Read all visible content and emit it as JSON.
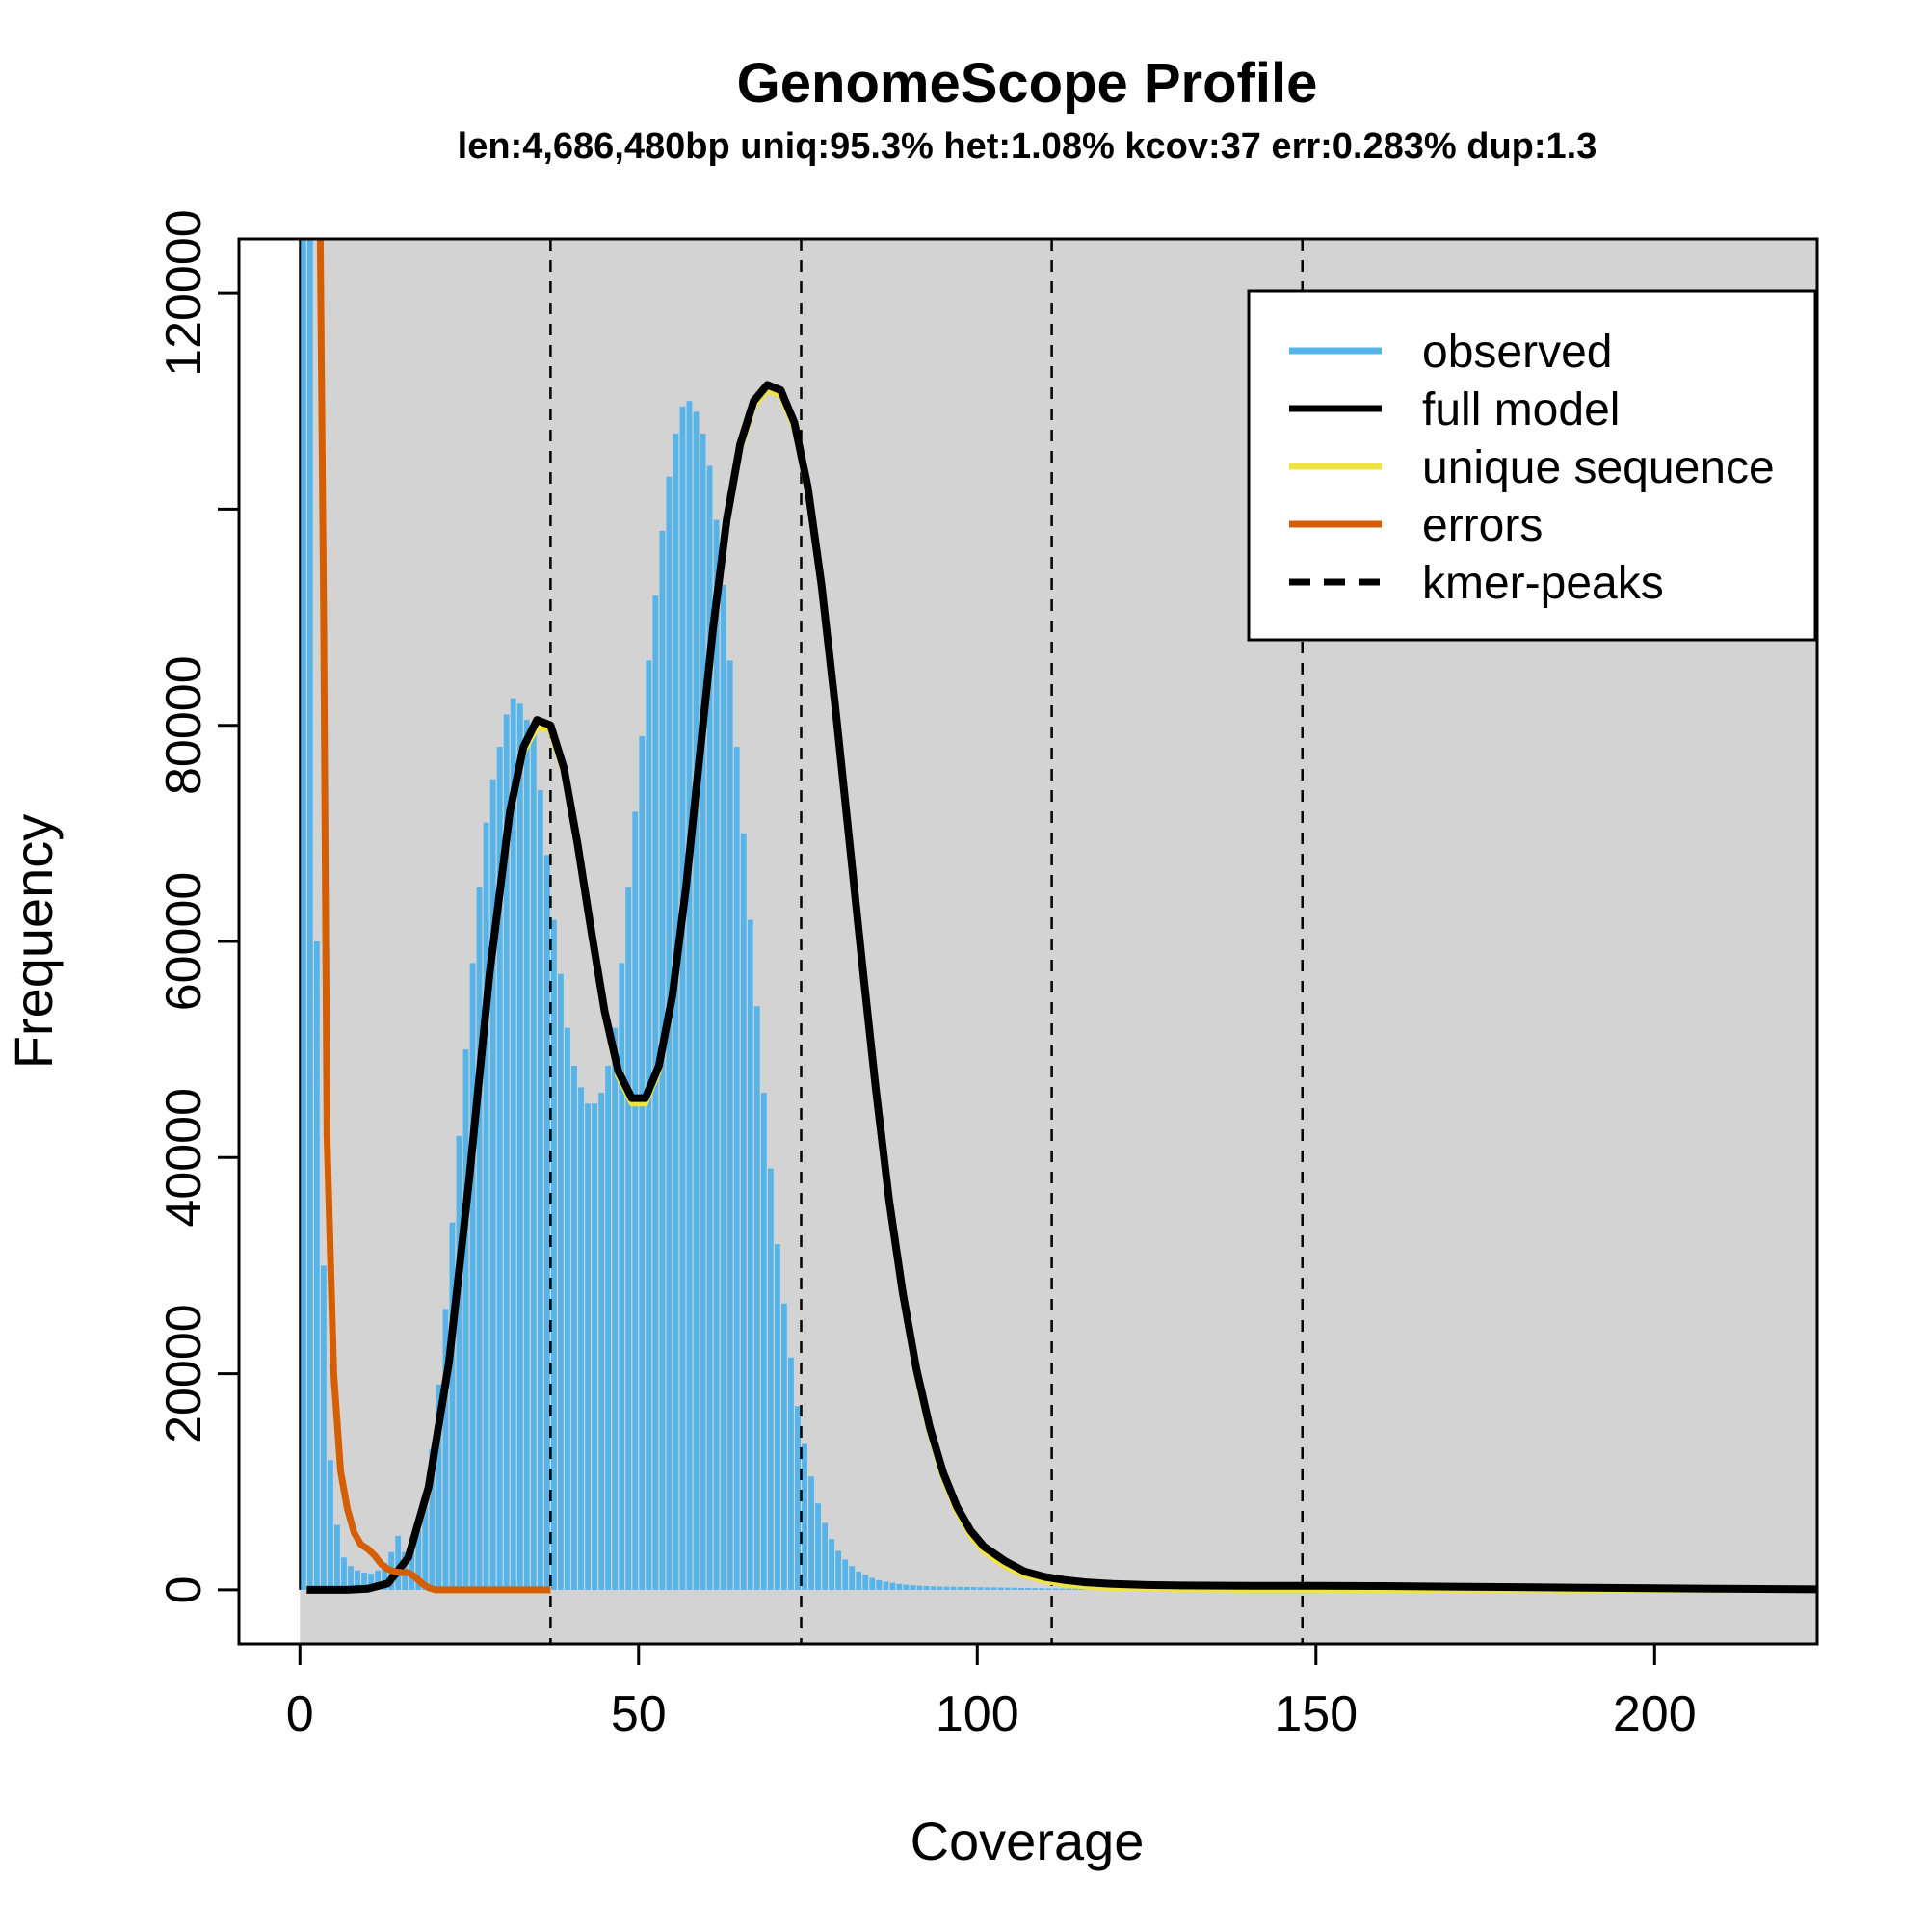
{
  "chart_data": {
    "type": "bar",
    "title": "GenomeScope Profile",
    "subtitle": "len:4,686,480bp uniq:95.3% het:1.08% kcov:37 err:0.283% dup:1.3",
    "xlabel": "Coverage",
    "ylabel": "Frequency",
    "xlim": [
      -9,
      224
    ],
    "ylim": [
      -5000,
      125000
    ],
    "x_ticks": [
      0,
      50,
      100,
      150,
      200
    ],
    "y_ticks": [
      0,
      20000,
      40000,
      60000,
      80000,
      120000
    ],
    "grid": false,
    "legend_position": "top-right",
    "colors": {
      "background": "#d3d3d3",
      "observed": "#56b4e9",
      "full_model": "#000000",
      "unique_sequence": "#f0e442",
      "errors": "#d55e00"
    },
    "kmer_peaks": [
      37,
      74,
      111,
      148
    ],
    "legend": [
      {
        "label": "observed",
        "color": "#56b4e9",
        "style": "solid"
      },
      {
        "label": "full model",
        "color": "#000000",
        "style": "solid"
      },
      {
        "label": "unique sequence",
        "color": "#f0e442",
        "style": "solid"
      },
      {
        "label": "errors",
        "color": "#d55e00",
        "style": "solid"
      },
      {
        "label": "kmer-peaks",
        "color": "#000000",
        "style": "dashed"
      }
    ],
    "series": [
      {
        "name": "observed",
        "x": [
          1,
          2,
          3,
          4,
          5,
          6,
          7,
          8,
          9,
          10,
          11,
          12,
          13,
          14,
          15,
          16,
          17,
          18,
          19,
          20,
          21,
          22,
          23,
          24,
          25,
          26,
          27,
          28,
          29,
          30,
          31,
          32,
          33,
          34,
          35,
          36,
          37,
          38,
          39,
          40,
          41,
          42,
          43,
          44,
          45,
          46,
          47,
          48,
          49,
          50,
          51,
          52,
          53,
          54,
          55,
          56,
          57,
          58,
          59,
          60,
          61,
          62,
          63,
          64,
          65,
          66,
          67,
          68,
          69,
          70,
          71,
          72,
          73,
          74,
          75,
          76,
          77,
          78,
          79,
          80,
          81,
          82,
          83,
          84,
          85,
          86,
          87,
          88,
          89,
          90,
          91,
          92,
          93,
          94,
          95,
          96,
          97,
          98,
          99,
          100,
          101,
          102,
          103,
          104,
          105,
          106,
          107,
          108,
          109,
          110,
          111,
          112,
          113,
          114,
          115,
          116,
          117,
          118,
          119,
          120,
          121,
          122,
          123,
          124,
          125,
          126,
          127,
          128,
          129,
          130
        ],
        "values": [
          125000,
          125000,
          60000,
          30000,
          12000,
          6000,
          3000,
          2200,
          1800,
          1600,
          1500,
          1800,
          2500,
          3500,
          5000,
          3500,
          4000,
          5500,
          9000,
          13000,
          19000,
          26000,
          34000,
          42000,
          50000,
          58000,
          65000,
          71000,
          75000,
          78000,
          81000,
          82500,
          82000,
          80500,
          79500,
          74000,
          68000,
          62000,
          57000,
          52000,
          48500,
          46500,
          45000,
          45000,
          46000,
          48500,
          52000,
          58000,
          65000,
          72000,
          79000,
          86000,
          92000,
          98000,
          103000,
          107000,
          109500,
          110000,
          109000,
          107000,
          104000,
          99000,
          93000,
          86000,
          78000,
          70000,
          62000,
          54000,
          46000,
          39000,
          32000,
          26500,
          21500,
          17000,
          13500,
          10500,
          8000,
          6200,
          4700,
          3600,
          2800,
          2200,
          1700,
          1400,
          1100,
          900,
          750,
          650,
          550,
          480,
          420,
          380,
          350,
          320,
          300,
          290,
          280,
          270,
          260,
          250,
          240,
          230,
          220,
          210,
          200,
          190,
          180,
          170,
          160,
          150,
          140,
          130,
          120,
          110,
          100,
          95,
          90,
          85,
          80,
          75,
          70,
          65,
          60,
          55,
          50,
          45,
          40,
          35,
          30,
          25
        ]
      },
      {
        "name": "full model",
        "x": [
          1,
          4,
          7,
          10,
          13,
          16,
          19,
          22,
          25,
          28,
          31,
          33,
          35,
          37,
          39,
          41,
          43,
          45,
          47,
          49,
          51,
          53,
          55,
          57,
          59,
          61,
          63,
          65,
          67,
          69,
          71,
          73,
          75,
          77,
          79,
          81,
          83,
          85,
          87,
          89,
          91,
          93,
          95,
          97,
          99,
          101,
          104,
          107,
          110,
          113,
          116,
          120,
          125,
          130,
          140,
          150,
          160,
          170,
          180,
          190,
          200,
          210,
          224
        ],
        "values": [
          0,
          0,
          0,
          100,
          600,
          3000,
          9500,
          21000,
          38000,
          57000,
          72000,
          78000,
          80500,
          80000,
          76000,
          69000,
          61000,
          53500,
          48000,
          45500,
          45500,
          48500,
          55000,
          65000,
          77000,
          89000,
          99000,
          106000,
          110000,
          111500,
          111000,
          108000,
          102000,
          93000,
          82000,
          70000,
          58000,
          46500,
          36000,
          27500,
          20500,
          15000,
          10800,
          7700,
          5500,
          4000,
          2700,
          1700,
          1200,
          900,
          700,
          550,
          450,
          400,
          380,
          380,
          350,
          300,
          250,
          200,
          150,
          100,
          50
        ]
      },
      {
        "name": "unique sequence",
        "x": [
          1,
          4,
          7,
          10,
          13,
          16,
          19,
          22,
          25,
          28,
          31,
          33,
          35,
          37,
          39,
          41,
          43,
          45,
          47,
          49,
          51,
          53,
          55,
          57,
          59,
          61,
          63,
          65,
          67,
          69,
          71,
          73,
          75,
          77,
          79,
          81,
          83,
          85,
          87,
          89,
          91,
          93,
          95,
          97,
          99,
          101,
          104,
          107,
          110,
          113,
          116,
          120,
          125,
          130,
          140,
          150,
          160,
          170,
          180,
          190,
          200,
          210,
          224
        ],
        "values": [
          0,
          0,
          0,
          80,
          500,
          2800,
          9000,
          20500,
          37500,
          56500,
          71500,
          77500,
          79800,
          79500,
          75500,
          68500,
          60500,
          53000,
          47500,
          45000,
          45000,
          48000,
          54500,
          64500,
          76500,
          88500,
          98500,
          105500,
          109500,
          111000,
          110500,
          107500,
          101500,
          92500,
          81500,
          69500,
          57500,
          46000,
          35500,
          27000,
          20000,
          14500,
          10300,
          7200,
          5000,
          3500,
          2200,
          1300,
          800,
          500,
          300,
          150,
          80,
          40,
          20,
          10,
          5,
          0,
          0,
          0,
          0,
          0,
          0
        ]
      },
      {
        "name": "errors",
        "x": [
          3,
          3.5,
          4,
          5,
          6,
          7,
          8,
          9,
          10,
          11,
          12,
          13,
          14,
          15,
          16,
          17,
          18,
          19,
          20,
          22,
          25,
          30,
          37
        ],
        "values": [
          125000,
          90000,
          42000,
          20000,
          11000,
          7500,
          5300,
          4200,
          3800,
          3200,
          2400,
          1900,
          1700,
          1600,
          1600,
          1200,
          600,
          200,
          0,
          0,
          0,
          0,
          0
        ]
      }
    ]
  }
}
